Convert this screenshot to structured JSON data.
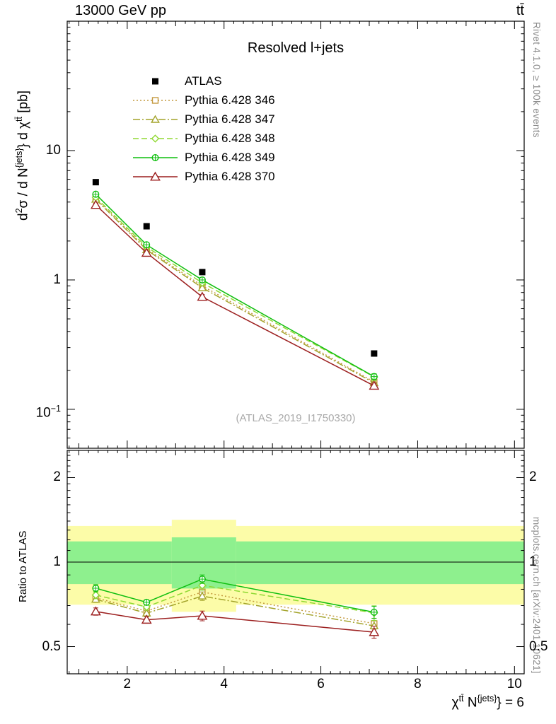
{
  "chart_data": {
    "type": "line",
    "title": "Resolved l+jets",
    "header_left": "13000 GeV pp",
    "header_right": "tt̄",
    "watermark": "(ATLAS_2019_I1750330)",
    "notes": {
      "right_top": "Rivet 4.1.0, ≥ 100k events",
      "right_bottom": "mcplots.cern.ch [arXiv:2401.10621]"
    },
    "ylabel_segments": [
      {
        "t": "d"
      },
      {
        "sup": "2"
      },
      {
        "t": "σ / d N"
      },
      {
        "sup": "{jets}"
      },
      {
        "t": "} d χ"
      },
      {
        "sup": "tt̄"
      },
      {
        "t": " [pb]"
      }
    ],
    "xlabel_segments": [
      {
        "t": "χ"
      },
      {
        "sup": "tt̄"
      },
      {
        "t": " N"
      },
      {
        "sup": "{jets}"
      },
      {
        "t": "} = 6"
      }
    ],
    "ratio_ylabel": "Ratio to ATLAS",
    "xaxis": {
      "min": 0.76,
      "max": 10.2,
      "minor_step": 0.2,
      "major_ticks": [
        2,
        4,
        6,
        8,
        10
      ]
    },
    "yaxis": {
      "min": 0.05,
      "max": 100,
      "scale": "log",
      "ticks": [
        {
          "v": 10,
          "segs": [
            {
              "t": "10"
            }
          ]
        },
        {
          "v": 1,
          "segs": [
            {
              "t": "1"
            }
          ]
        },
        {
          "v": 0.1,
          "segs": [
            {
              "t": "10"
            },
            {
              "sup": "−1"
            }
          ]
        }
      ]
    },
    "ratio_axis": {
      "min": 0.4,
      "max": 2.5,
      "scale": "log",
      "ticks": [
        {
          "v": 2,
          "label": "2"
        },
        {
          "v": 1,
          "label": "1"
        },
        {
          "v": 0.5,
          "label": "0.5"
        }
      ]
    },
    "x": [
      1.35,
      2.4,
      3.55,
      7.1
    ],
    "series": [
      {
        "name": "ATLAS",
        "color": "#000000",
        "marker": "square-filled",
        "line": "none",
        "is_reference": true,
        "values": [
          5.7,
          2.6,
          1.15,
          0.27
        ]
      },
      {
        "name": "Pythia 6.428 346",
        "color": "#c49a40",
        "marker": "square-open",
        "line": "dotted",
        "values": [
          4.25,
          1.74,
          0.9,
          0.163
        ],
        "err_frac": [
          0.025,
          0.02,
          0.035,
          0.045
        ]
      },
      {
        "name": "Pythia 6.428 347",
        "color": "#a3a32a",
        "marker": "triangle-open",
        "line": "dashdot",
        "values": [
          4.2,
          1.71,
          0.87,
          0.16
        ],
        "err_frac": [
          0.025,
          0.02,
          0.035,
          0.045
        ]
      },
      {
        "name": "Pythia 6.428 348",
        "color": "#90d933",
        "marker": "diamond-open",
        "line": "dashed",
        "values": [
          4.35,
          1.8,
          0.95,
          0.178
        ],
        "err_frac": [
          0.03,
          0.025,
          0.04,
          0.06
        ]
      },
      {
        "name": "Pythia 6.428 349",
        "color": "#0fbf0f",
        "marker": "circle-plus",
        "line": "solid",
        "values": [
          4.6,
          1.87,
          1.0,
          0.179
        ],
        "err_frac": [
          0.03,
          0.02,
          0.035,
          0.05
        ]
      },
      {
        "name": "Pythia 6.428 370",
        "color": "#9c1f1f",
        "marker": "triangle-open-large",
        "line": "solid",
        "values": [
          3.8,
          1.62,
          0.74,
          0.152
        ],
        "err_frac": [
          0.03,
          0.025,
          0.04,
          0.05
        ]
      }
    ],
    "bands": {
      "yellow": {
        "color": "#fcfca8",
        "segments": [
          {
            "x1": 0.76,
            "x2": 2.92,
            "lo": 0.705,
            "hi": 1.345
          },
          {
            "x1": 2.92,
            "x2": 4.25,
            "lo": 0.665,
            "hi": 1.415
          },
          {
            "x1": 4.25,
            "x2": 10.2,
            "lo": 0.705,
            "hi": 1.345
          }
        ]
      },
      "green": {
        "color": "#8ef08e",
        "segments": [
          {
            "x1": 0.76,
            "x2": 2.92,
            "lo": 0.835,
            "hi": 1.185
          },
          {
            "x1": 2.92,
            "x2": 4.25,
            "lo": 0.805,
            "hi": 1.225
          },
          {
            "x1": 4.25,
            "x2": 10.2,
            "lo": 0.835,
            "hi": 1.185
          }
        ]
      }
    },
    "ratio_reference_line": 1
  }
}
